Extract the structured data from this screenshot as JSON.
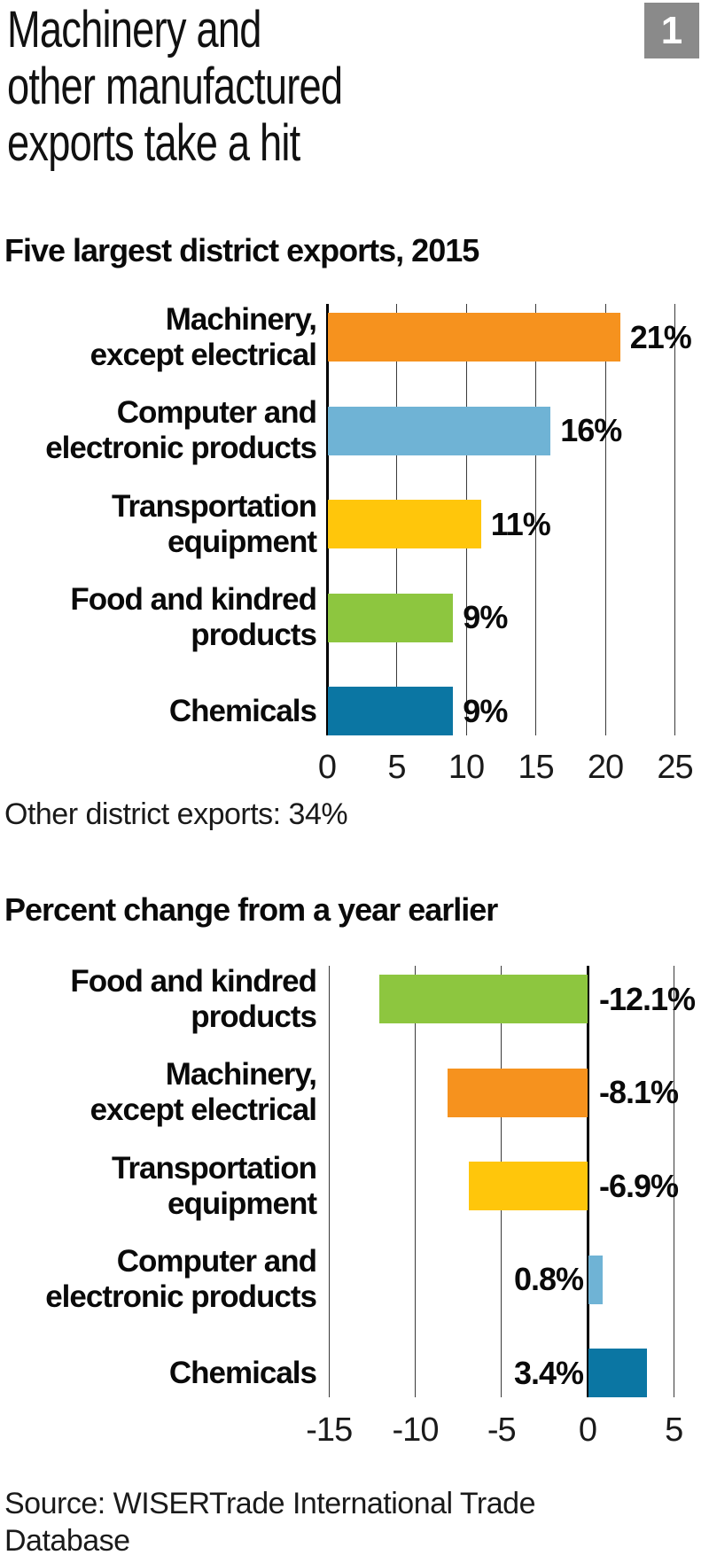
{
  "header": {
    "title_lines": [
      "Machinery and",
      "other manufactured",
      "exports take a hit"
    ],
    "badge": "1"
  },
  "footer": {
    "source_lines": [
      "Source: WISERTrade International Trade",
      "Database"
    ]
  },
  "colors": {
    "orange": "#F6921E",
    "light_blue": "#6FB3D5",
    "yellow": "#FFC60B",
    "green": "#8DC63F",
    "dark_blue": "#0B76A3",
    "badge_gray": "#8A8A8A",
    "gridline": "#3A3A3A",
    "zero_line": "#000000",
    "text": "#0A0A0A"
  },
  "chart_data": [
    {
      "type": "bar",
      "orientation": "horizontal",
      "title": "Five largest district exports, 2015",
      "categories": [
        "Machinery, except electrical",
        "Computer and electronic products",
        "Transportation equipment",
        "Food and kindred products",
        "Chemicals"
      ],
      "category_lines": [
        [
          "Machinery,",
          "except electrical"
        ],
        [
          "Computer and",
          "electronic products"
        ],
        [
          "Transportation",
          "equipment"
        ],
        [
          "Food and kindred",
          "products"
        ],
        [
          "Chemicals"
        ]
      ],
      "values": [
        21,
        16,
        11,
        9,
        9
      ],
      "value_labels": [
        "21%",
        "16%",
        "11%",
        "9%",
        "9%"
      ],
      "bar_colors": [
        "#F6921E",
        "#6FB3D5",
        "#FFC60B",
        "#8DC63F",
        "#0B76A3"
      ],
      "xlim": [
        0,
        25
      ],
      "ticks": [
        0,
        5,
        10,
        15,
        20,
        25
      ],
      "tick_labels": [
        "0",
        "5",
        "10",
        "15",
        "20",
        "25"
      ],
      "grid": true,
      "legend": false,
      "footnote": "Other district exports: 34%"
    },
    {
      "type": "bar",
      "orientation": "horizontal",
      "title": "Percent change from a year earlier",
      "categories": [
        "Food and kindred products",
        "Machinery, except electrical",
        "Transportation equipment",
        "Computer and electronic products",
        "Chemicals"
      ],
      "category_lines": [
        [
          "Food and kindred",
          "products"
        ],
        [
          "Machinery,",
          "except electrical"
        ],
        [
          "Transportation",
          "equipment"
        ],
        [
          "Computer and",
          "electronic products"
        ],
        [
          "Chemicals"
        ]
      ],
      "values": [
        -12.1,
        -8.1,
        -6.9,
        0.8,
        3.4
      ],
      "value_labels": [
        "-12.1%",
        "-8.1%",
        "-6.9%",
        "0.8%",
        "3.4%"
      ],
      "bar_colors": [
        "#8DC63F",
        "#F6921E",
        "#FFC60B",
        "#6FB3D5",
        "#0B76A3"
      ],
      "xlim": [
        -15,
        5
      ],
      "ticks": [
        -15,
        -10,
        -5,
        0,
        5
      ],
      "tick_labels": [
        "-15",
        "-10",
        "-5",
        "0",
        "5"
      ],
      "grid": true,
      "legend": false
    }
  ]
}
